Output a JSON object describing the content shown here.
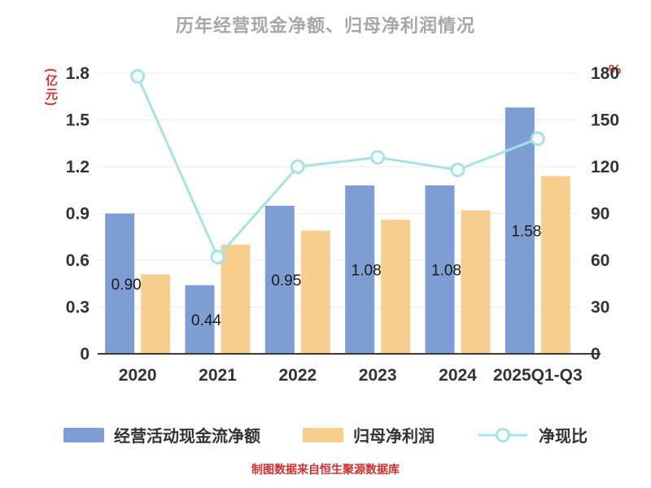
{
  "footer": "制图数据来自恒生聚源数据库",
  "chart_data": {
    "type": "bar",
    "title": "历年经营现金净额、归母净利润情况",
    "categories": [
      "2020",
      "2021",
      "2022",
      "2023",
      "2024",
      "2025Q1-Q3"
    ],
    "series": [
      {
        "name": "经营活动现金流净额",
        "type": "bar",
        "axis": "left",
        "color": "#7d9dd3",
        "values": [
          0.9,
          0.44,
          0.95,
          1.08,
          1.08,
          1.58
        ],
        "labels": [
          "0.90",
          "0.44",
          "0.95",
          "1.08",
          "1.08",
          "1.58"
        ]
      },
      {
        "name": "归母净利润",
        "type": "bar",
        "axis": "left",
        "color": "#f7ce8e",
        "values": [
          0.51,
          0.7,
          0.79,
          0.86,
          0.92,
          1.14
        ]
      },
      {
        "name": "净现比",
        "type": "line",
        "axis": "right",
        "color": "#a5e3e5",
        "marker_fill": "#f4fcfc",
        "values": [
          178,
          62,
          120,
          126,
          118,
          138
        ]
      }
    ],
    "left_axis": {
      "label": "(亿元)",
      "min": 0,
      "max": 1.8,
      "ticks": [
        0,
        0.3,
        0.6,
        0.9,
        1.2,
        1.5,
        1.8
      ],
      "tick_labels": [
        "0",
        "0.3",
        "0.6",
        "0.9",
        "1.2",
        "1.5",
        "1.8"
      ]
    },
    "right_axis": {
      "label": "%",
      "min": 0,
      "max": 180,
      "ticks": [
        0,
        30,
        60,
        90,
        120,
        150,
        180
      ],
      "tick_labels": [
        "0",
        "30",
        "60",
        "90",
        "120",
        "150",
        "180"
      ]
    },
    "grid": true,
    "legend_position": "bottom",
    "colors": {
      "title": "#a7a7a7",
      "axis_text": "#333333",
      "axis_line": "#3a3a3a",
      "gridline": "#ebebeb",
      "unit_text": "#d42e2e",
      "bar_value_label": "#1a1a1a"
    }
  }
}
